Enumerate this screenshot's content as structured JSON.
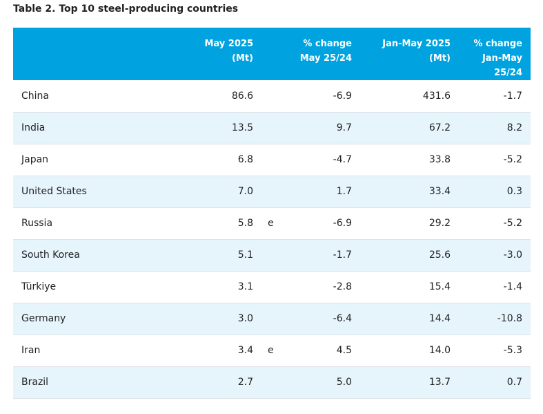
{
  "title": "Table 2. Top 10 steel-producing countries",
  "header": {
    "may_line1": "May 2025",
    "may_line2": "(Mt)",
    "chg_line1": "% change",
    "chg_line2": "May 25/24",
    "ytd_line1": "Jan-May 2025",
    "ytd_line2": "(Mt)",
    "ytdchg_line1": "% change",
    "ytdchg_line2": "Jan-May",
    "ytdchg_line3": "25/24"
  },
  "rows": [
    {
      "country": "China",
      "may": "86.6",
      "flag": "",
      "chg": "-6.9",
      "ytd": "431.6",
      "ytdchg": "-1.7"
    },
    {
      "country": "India",
      "may": "13.5",
      "flag": "",
      "chg": "9.7",
      "ytd": "67.2",
      "ytdchg": "8.2"
    },
    {
      "country": "Japan",
      "may": "6.8",
      "flag": "",
      "chg": "-4.7",
      "ytd": "33.8",
      "ytdchg": "-5.2"
    },
    {
      "country": "United States",
      "may": "7.0",
      "flag": "",
      "chg": "1.7",
      "ytd": "33.4",
      "ytdchg": "0.3"
    },
    {
      "country": "Russia",
      "may": "5.8",
      "flag": "e",
      "chg": "-6.9",
      "ytd": "29.2",
      "ytdchg": "-5.2"
    },
    {
      "country": "South Korea",
      "may": "5.1",
      "flag": "",
      "chg": "-1.7",
      "ytd": "25.6",
      "ytdchg": "-3.0"
    },
    {
      "country": "Türkiye",
      "may": "3.1",
      "flag": "",
      "chg": "-2.8",
      "ytd": "15.4",
      "ytdchg": "-1.4"
    },
    {
      "country": "Germany",
      "may": "3.0",
      "flag": "",
      "chg": "-6.4",
      "ytd": "14.4",
      "ytdchg": "-10.8"
    },
    {
      "country": "Iran",
      "may": "3.4",
      "flag": "e",
      "chg": "4.5",
      "ytd": "14.0",
      "ytdchg": "-5.3"
    },
    {
      "country": "Brazil",
      "may": "2.7",
      "flag": "",
      "chg": "5.0",
      "ytd": "13.7",
      "ytdchg": "0.7"
    }
  ],
  "colors": {
    "header_bg": "#00a3e0",
    "header_text": "#ffffff",
    "alt_row_bg": "#e6f4fc",
    "row_border": "#dde3e8"
  }
}
